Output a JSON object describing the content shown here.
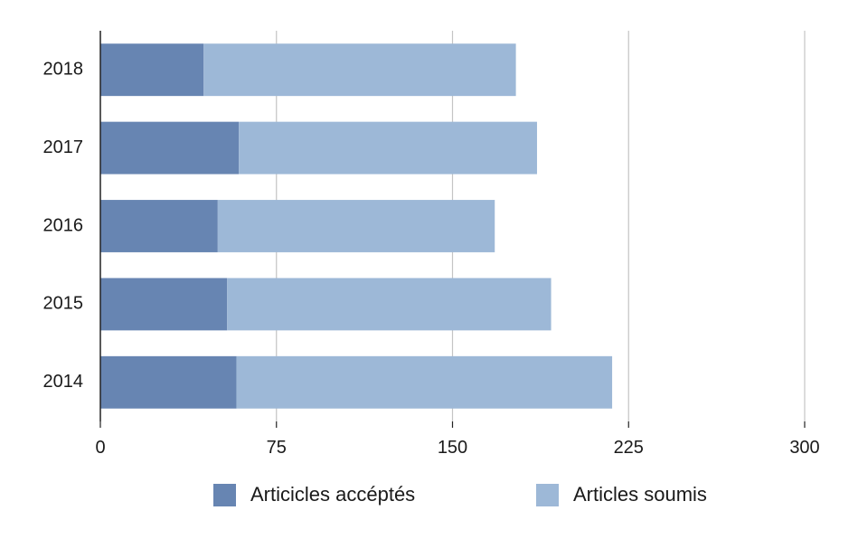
{
  "chart_data": {
    "type": "bar",
    "orientation": "horizontal",
    "stacked": true,
    "categories": [
      "2018",
      "2017",
      "2016",
      "2015",
      "2014"
    ],
    "series": [
      {
        "name": "Articicles accéptés",
        "color": "#6785b2",
        "values": [
          44,
          59,
          50,
          54,
          58
        ]
      },
      {
        "name": "Articles soumis",
        "color": "#9db8d7",
        "values": [
          133,
          127,
          118,
          138,
          160
        ]
      }
    ],
    "xlim": [
      0,
      300
    ],
    "xticks": [
      "0",
      "75",
      "150",
      "225",
      "300"
    ],
    "xtick_values": [
      0,
      75,
      150,
      225,
      300
    ],
    "grid": "vertical",
    "legend_position": "bottom"
  }
}
